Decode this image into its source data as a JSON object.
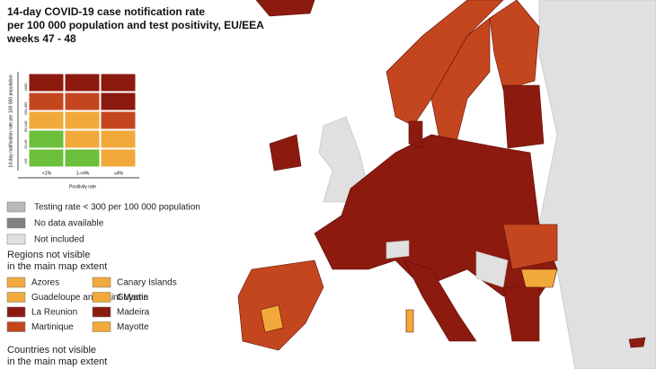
{
  "title": [
    "14-day COVID-19 case notification rate",
    "per 100 000 population and test positivity, EU/EEA",
    "weeks 47 - 48"
  ],
  "matrix": {
    "y_label": "14-day notification rate per 100 000 population",
    "x_label": "Positivity rate",
    "rows": [
      "≥500",
      "150-499",
      "50-149",
      "25-49",
      "<25"
    ],
    "columns": [
      "<1%",
      "1-<4%",
      "≥4%"
    ],
    "colors": [
      [
        "#8c1a0f",
        "#8c1a0f",
        "#8c1a0f"
      ],
      [
        "#c4461f",
        "#c4461f",
        "#8c1a0f"
      ],
      [
        "#f2a93b",
        "#f2a93b",
        "#c4461f"
      ],
      [
        "#6cbf3a",
        "#f2a93b",
        "#f2a93b"
      ],
      [
        "#6cbf3a",
        "#6cbf3a",
        "#f2a93b"
      ]
    ]
  },
  "legend": [
    {
      "label": "Testing rate < 300 per 100 000 population",
      "color": "#b8b8b8"
    },
    {
      "label": "No data available",
      "color": "#808080"
    },
    {
      "label": "Not included",
      "color": "#e0e0e0"
    }
  ],
  "regions_heading": [
    "Regions not visible",
    "in the main map extent"
  ],
  "regions": [
    {
      "label": "Azores",
      "color": "#f2a93b"
    },
    {
      "label": "Canary Islands",
      "color": "#f2a93b"
    },
    {
      "label": "Guadeloupe and Saint Martin",
      "color": "#f2a93b"
    },
    {
      "label": "Guyane",
      "color": "#f2a93b"
    },
    {
      "label": "La Reunion",
      "color": "#8c1a0f"
    },
    {
      "label": "Madeira",
      "color": "#8c1a0f"
    },
    {
      "label": "Martinique",
      "color": "#c4461f"
    },
    {
      "label": "Mayotte",
      "color": "#f2a93b"
    }
  ],
  "countries_heading": [
    "Countries not visible",
    "in the main map extent"
  ]
}
